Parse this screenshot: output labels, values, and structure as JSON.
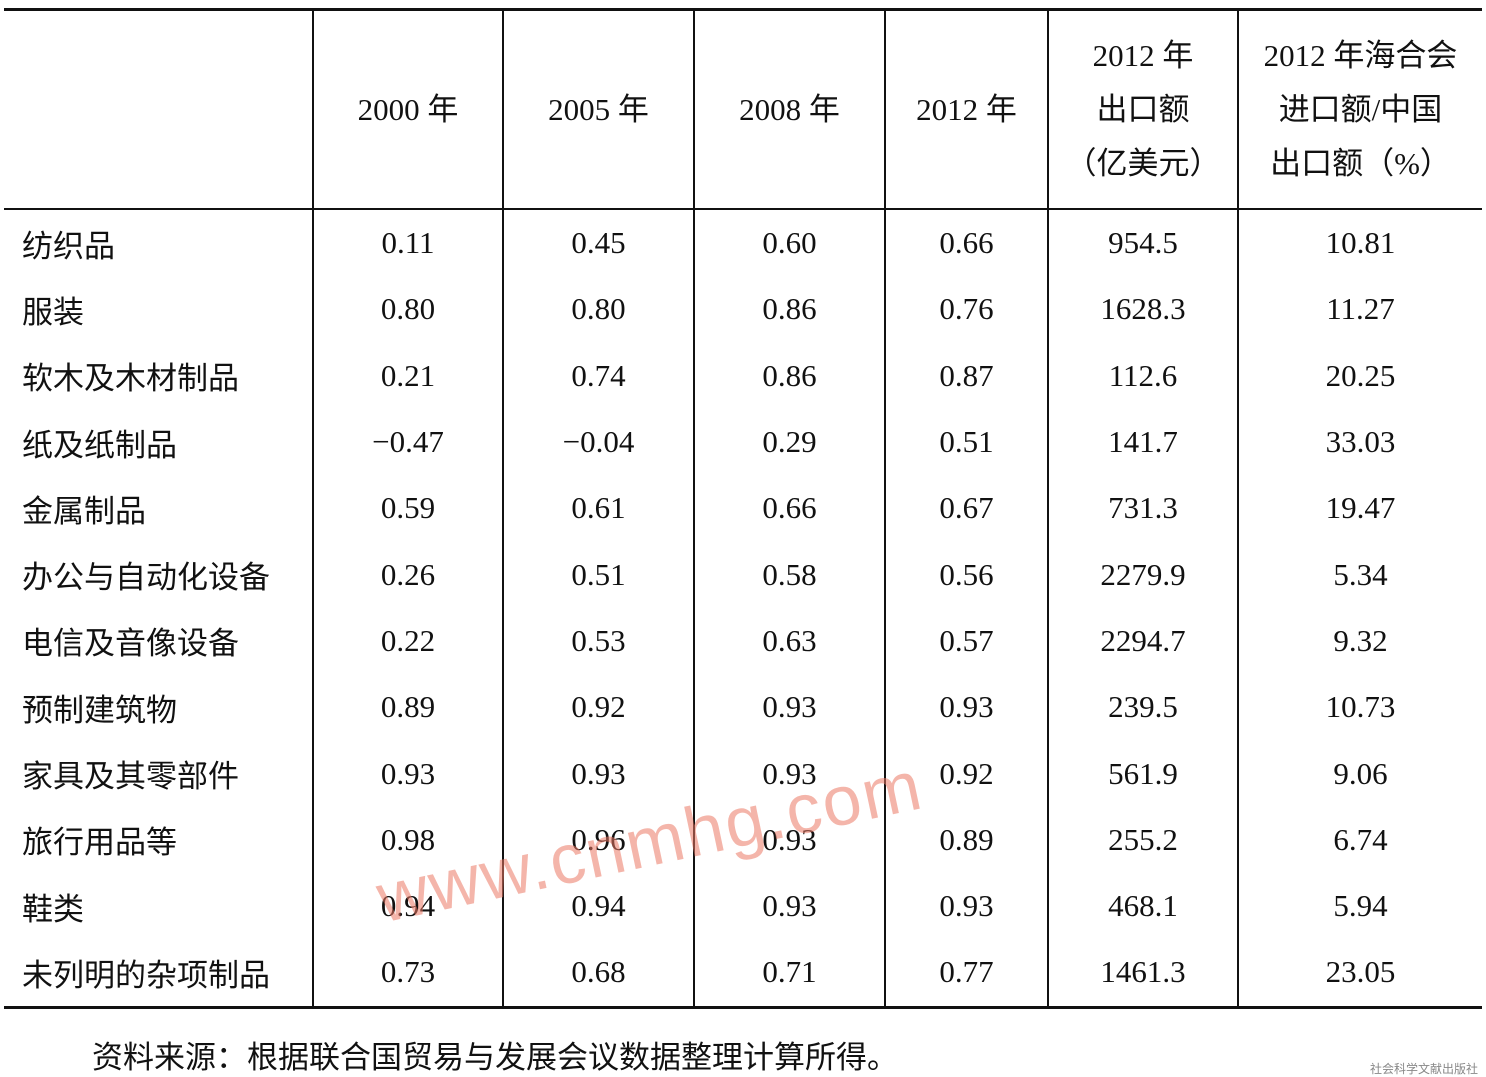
{
  "table": {
    "headers": [
      [
        "2000 年"
      ],
      [
        "2005 年"
      ],
      [
        "2008 年"
      ],
      [
        "2012 年"
      ],
      [
        "2012 年",
        "出口额",
        "（亿美元）"
      ],
      [
        "2012 年海合会",
        "进口额/中国",
        "出口额（%）"
      ]
    ],
    "rows": [
      [
        "纺织品",
        "0.11",
        "0.45",
        "0.60",
        "0.66",
        "954.5",
        "10.81"
      ],
      [
        "服装",
        "0.80",
        "0.80",
        "0.86",
        "0.76",
        "1628.3",
        "11.27"
      ],
      [
        "软木及木材制品",
        "0.21",
        "0.74",
        "0.86",
        "0.87",
        "112.6",
        "20.25"
      ],
      [
        "纸及纸制品",
        "−0.47",
        "−0.04",
        "0.29",
        "0.51",
        "141.7",
        "33.03"
      ],
      [
        "金属制品",
        "0.59",
        "0.61",
        "0.66",
        "0.67",
        "731.3",
        "19.47"
      ],
      [
        "办公与自动化设备",
        "0.26",
        "0.51",
        "0.58",
        "0.56",
        "2279.9",
        "5.34"
      ],
      [
        "电信及音像设备",
        "0.22",
        "0.53",
        "0.63",
        "0.57",
        "2294.7",
        "9.32"
      ],
      [
        "预制建筑物",
        "0.89",
        "0.92",
        "0.93",
        "0.93",
        "239.5",
        "10.73"
      ],
      [
        "家具及其零部件",
        "0.93",
        "0.93",
        "0.93",
        "0.92",
        "561.9",
        "9.06"
      ],
      [
        "旅行用品等",
        "0.98",
        "0.96",
        "0.93",
        "0.89",
        "255.2",
        "6.74"
      ],
      [
        "鞋类",
        "0.94",
        "0.94",
        "0.93",
        "0.93",
        "468.1",
        "5.94"
      ],
      [
        "未列明的杂项制品",
        "0.73",
        "0.68",
        "0.71",
        "0.77",
        "1461.3",
        "23.05"
      ]
    ]
  },
  "source": "资料来源：根据联合国贸易与发展会议数据整理计算所得。",
  "watermark": "www.cnmhg.com",
  "publisher": "社会科学文献出版社"
}
